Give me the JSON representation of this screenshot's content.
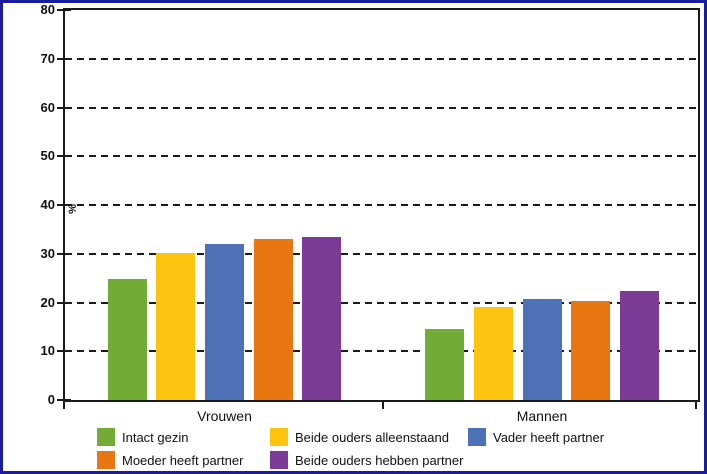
{
  "frame": {
    "border_color": "#1B1B9E",
    "background": "#FFFFFF",
    "axis_color": "#1A1A1A"
  },
  "chart_data": {
    "type": "bar",
    "title": "",
    "xlabel": "",
    "ylabel": "%",
    "ylim": [
      0,
      80
    ],
    "yticks": [
      0,
      10,
      20,
      30,
      40,
      50,
      60,
      70,
      80
    ],
    "grid": "horizontal-dashed",
    "legend_position": "bottom",
    "categories": [
      "Vrouwen",
      "Mannen"
    ],
    "series": [
      {
        "name": "Intact gezin",
        "color": "#72AB35",
        "values": [
          24.8,
          14.5
        ]
      },
      {
        "name": "Beide ouders alleenstaand",
        "color": "#FDC40F",
        "values": [
          30.2,
          19.0
        ]
      },
      {
        "name": "Vader heeft partner",
        "color": "#4C71B7",
        "values": [
          32.1,
          20.7
        ]
      },
      {
        "name": "Moeder heeft partner",
        "color": "#E87711",
        "values": [
          33.0,
          20.3
        ]
      },
      {
        "name": "Beide ouders hebben partner",
        "color": "#7B3A95",
        "values": [
          33.4,
          22.4
        ]
      }
    ]
  }
}
